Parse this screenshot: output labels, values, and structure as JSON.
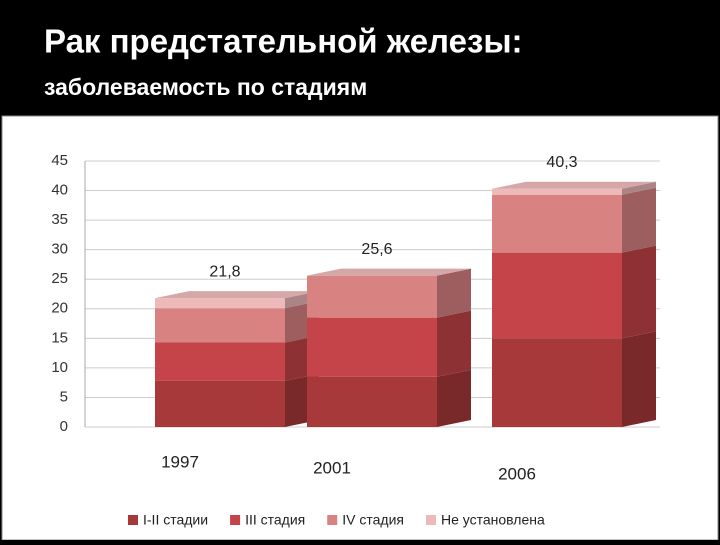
{
  "chart_data": {
    "type": "stacked-bar-3d",
    "title": "Рак предстательной железы:",
    "subtitle": "заболеваемость по стадиям",
    "categories": [
      "1997",
      "2001",
      "2006"
    ],
    "series": [
      {
        "name": "I-II стадии",
        "color": "#a8393b",
        "values": [
          7.8,
          8.5,
          15
        ]
      },
      {
        "name": "III стадия",
        "color": "#c4444a",
        "values": [
          6.5,
          10,
          14.5
        ]
      },
      {
        "name": "IV стадия",
        "color": "#d98282",
        "values": [
          5.8,
          7.1,
          9.8
        ]
      },
      {
        "name": "Не установлена",
        "color": "#eeb9b9",
        "values": [
          1.7,
          0,
          1
        ]
      }
    ],
    "totals": {
      "values": [
        21.8,
        25.6,
        40.3
      ],
      "value_labels": [
        "21,8",
        "25,6",
        "40,3"
      ]
    },
    "ylim": [
      0,
      45
    ],
    "yticks": [
      0,
      5,
      10,
      15,
      20,
      25,
      30,
      35,
      40,
      45
    ],
    "grid": true
  }
}
